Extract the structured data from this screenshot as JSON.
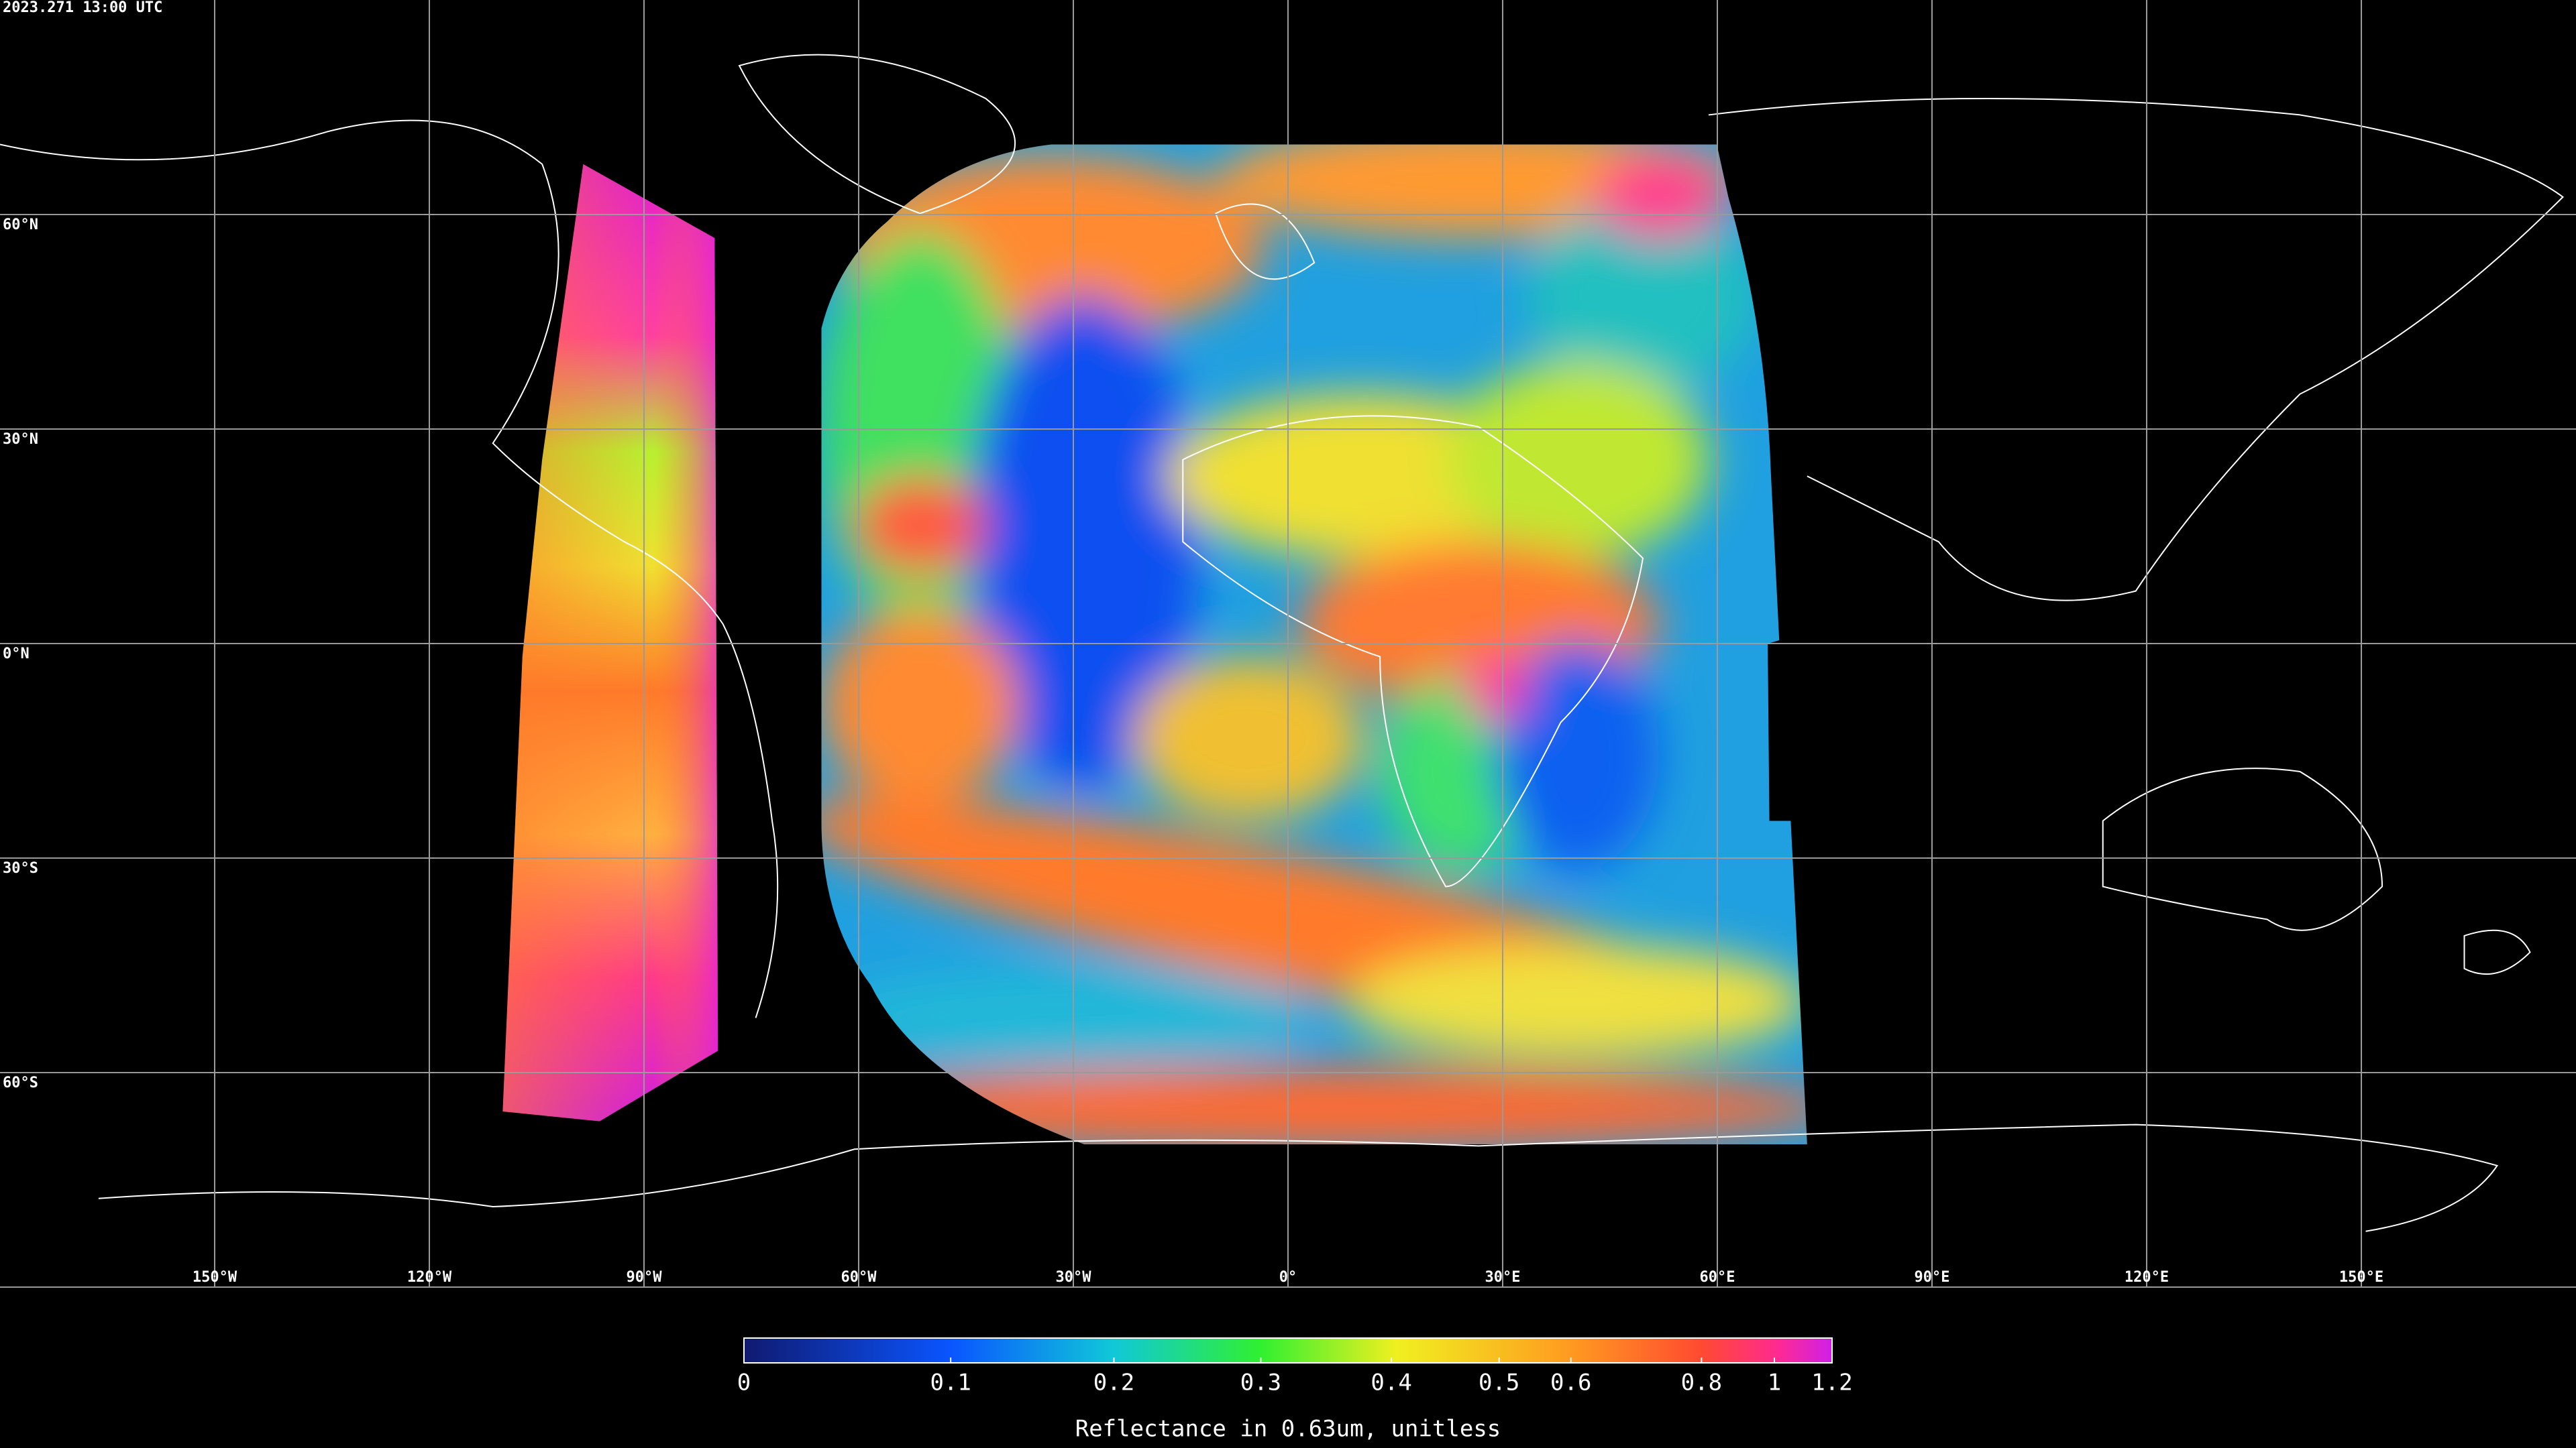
{
  "timestamp": "2023.271 13:00 UTC",
  "map": {
    "lat_ticks": [
      {
        "value": 60,
        "label": "60°N"
      },
      {
        "value": 30,
        "label": "30°N"
      },
      {
        "value": 0,
        "label": "0°N"
      },
      {
        "value": -30,
        "label": "30°S"
      },
      {
        "value": -60,
        "label": "60°S"
      }
    ],
    "lon_ticks": [
      {
        "value": -150,
        "label": "150°W"
      },
      {
        "value": -120,
        "label": "120°W"
      },
      {
        "value": -90,
        "label": "90°W"
      },
      {
        "value": -60,
        "label": "60°W"
      },
      {
        "value": -30,
        "label": "30°W"
      },
      {
        "value": 0,
        "label": "0°"
      },
      {
        "value": 30,
        "label": "30°E"
      },
      {
        "value": 60,
        "label": "60°E"
      },
      {
        "value": 90,
        "label": "90°E"
      },
      {
        "value": 120,
        "label": "120°E"
      },
      {
        "value": 150,
        "label": "150°E"
      }
    ]
  },
  "colorbar": {
    "title": "Reflectance in 0.63um, unitless",
    "range": [
      0,
      1.2
    ],
    "ticks": [
      0,
      0.1,
      0.2,
      0.3,
      0.4,
      0.5,
      0.6,
      0.8,
      1,
      1.2
    ]
  }
}
